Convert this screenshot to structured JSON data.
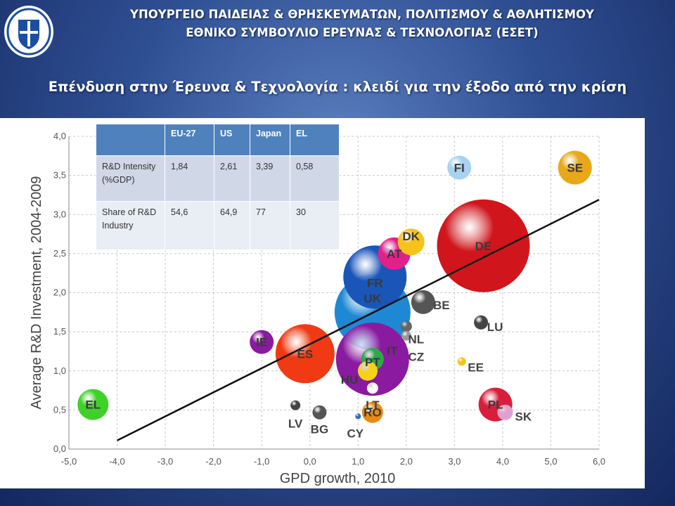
{
  "header": {
    "line1": "ΥΠΟΥΡΓΕΙΟ ΠΑΙΔΕΙΑΣ & ΘΡΗΣΚΕΥΜΑΤΩΝ, ΠΟΛΙΤΙΣΜΟΥ & ΑΘΛΗΤΙΣΜΟΥ",
    "line2": "ΕΘΝΙΚΟ ΣΥΜΒΟΥΛΙΟ ΕΡΕΥΝΑΣ & ΤΕΧΝΟΛΟΓΙΑΣ (ΕΣΕΤ)"
  },
  "title": "Επένδυση στην Έρευνα & Τεχνολογία : κλειδί για την έξοδο από την κρίση",
  "table": {
    "columns": [
      "",
      "EU-27",
      "US",
      "Japan",
      "EL"
    ],
    "rows": [
      {
        "label": "R&D Intensity (%GDP)",
        "values": [
          "1,84",
          "2,61",
          "3,39",
          "0,58"
        ]
      },
      {
        "label": "Share of R&D Industry",
        "values": [
          "54,6",
          "64,9",
          "77",
          "30"
        ]
      }
    ]
  },
  "chart_data": {
    "type": "scatter",
    "bubble": true,
    "xlabel": "GPD growth, 2010",
    "ylabel": "Average R&D Investment, 2004-2009",
    "xlim": [
      -5.0,
      6.0
    ],
    "ylim": [
      0.0,
      4.0
    ],
    "xticks": [
      "-5,0",
      "-4,0",
      "-3,0",
      "-2,0",
      "-1,0",
      "0,0",
      "1,0",
      "2,0",
      "3,0",
      "4,0",
      "5,0",
      "6,0"
    ],
    "yticks": [
      "0,0",
      "0,5",
      "1,0",
      "1,5",
      "2,0",
      "2,5",
      "3,0",
      "3,5",
      "4,0"
    ],
    "grid": true,
    "trendline": {
      "x1": -4.0,
      "y1": 0.11,
      "x2": 6.0,
      "y2": 3.19
    },
    "points": [
      {
        "label": "SE",
        "x": 5.5,
        "y": 3.6,
        "size": 24,
        "color": "#e8a81a"
      },
      {
        "label": "FI",
        "x": 3.1,
        "y": 3.6,
        "size": 17,
        "color": "#a8d2f0"
      },
      {
        "label": "DE",
        "x": 3.6,
        "y": 2.6,
        "size": 66,
        "color": "#d0161c"
      },
      {
        "label": "DK",
        "x": 2.1,
        "y": 2.65,
        "size": 19,
        "color": "#f5c31a"
      },
      {
        "label": "AT",
        "x": 1.75,
        "y": 2.5,
        "size": 23,
        "color": "#e2208a"
      },
      {
        "label": "FR",
        "x": 1.35,
        "y": 2.2,
        "size": 45,
        "color": "#1a55b8"
      },
      {
        "label": "BE",
        "x": 2.35,
        "y": 1.88,
        "size": 17,
        "color": "#555555"
      },
      {
        "label": "UK",
        "x": 1.3,
        "y": 1.75,
        "size": 54,
        "color": "#1f88d4"
      },
      {
        "label": "LU",
        "x": 3.55,
        "y": 1.62,
        "size": 10,
        "color": "#444444"
      },
      {
        "label": "NL",
        "x": 2.0,
        "y": 1.57,
        "size": 8,
        "color": "#666666"
      },
      {
        "label": "CZ",
        "x": 2.0,
        "y": 1.45,
        "size": 7,
        "color": "#999999"
      },
      {
        "label": "IE",
        "x": -1.0,
        "y": 1.37,
        "size": 17,
        "color": "#8a1aa0"
      },
      {
        "label": "ES",
        "x": -0.1,
        "y": 1.22,
        "size": 42,
        "color": "#f03a14"
      },
      {
        "label": "IT",
        "x": 1.3,
        "y": 1.15,
        "size": 52,
        "color": "#8a1aa0"
      },
      {
        "label": "PT",
        "x": 1.3,
        "y": 1.15,
        "size": 16,
        "color": "#2ea84a"
      },
      {
        "label": "HU",
        "x": 1.2,
        "y": 1.0,
        "size": 14,
        "color": "#f5d21a"
      },
      {
        "label": "EE",
        "x": 3.15,
        "y": 1.12,
        "size": 6,
        "color": "#f5c31a"
      },
      {
        "label": "LT",
        "x": 1.3,
        "y": 0.78,
        "size": 8,
        "color": "#ffffff"
      },
      {
        "label": "EL",
        "x": -4.5,
        "y": 0.57,
        "size": 22,
        "color": "#3fd12a"
      },
      {
        "label": "PL",
        "x": 3.85,
        "y": 0.57,
        "size": 24,
        "color": "#d81e3a"
      },
      {
        "label": "SK",
        "x": 4.05,
        "y": 0.47,
        "size": 11,
        "color": "#e0a0d0"
      },
      {
        "label": "LV",
        "x": -0.3,
        "y": 0.56,
        "size": 7,
        "color": "#444444"
      },
      {
        "label": "BG",
        "x": 0.2,
        "y": 0.47,
        "size": 10,
        "color": "#555555"
      },
      {
        "label": "RO",
        "x": 1.3,
        "y": 0.47,
        "size": 15,
        "color": "#e88a14"
      },
      {
        "label": "CY",
        "x": 1.0,
        "y": 0.42,
        "size": 4,
        "color": "#2a6ad0"
      }
    ]
  }
}
